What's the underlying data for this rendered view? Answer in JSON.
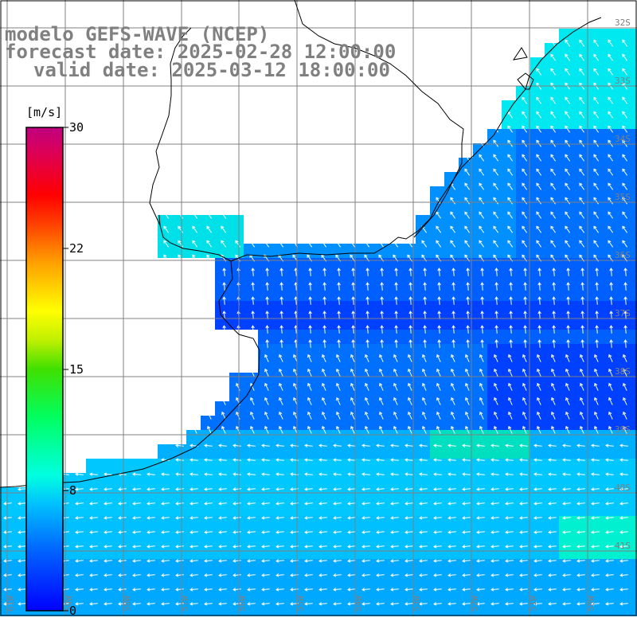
{
  "title": {
    "line1": "modelo GEFS-WAVE (NCEP)",
    "line2": "forecast date: 2025-02-28 12:00:00",
    "line3": "valid date: 2025-03-12 18:00:00"
  },
  "colorbar": {
    "unit": "[m/s]",
    "ticks": [
      "30",
      "22",
      "15",
      "8",
      "0"
    ],
    "min": 0,
    "max": 30,
    "colors": [
      "#0000ff",
      "#0060ff",
      "#00c0ff",
      "#00ffe0",
      "#00ff60",
      "#40e000",
      "#c0f000",
      "#ffff00",
      "#ffa000",
      "#ff4000",
      "#ff0000",
      "#e00050",
      "#c00080"
    ]
  },
  "map": {
    "region": "South-western Atlantic, Rio de la Plata to southern Brazil",
    "lon_labels": [
      "61W",
      "59W",
      "58W",
      "57W",
      "56W",
      "55W",
      "54W",
      "53W",
      "52W",
      "51W",
      "50W"
    ],
    "lat_labels": [
      "32S",
      "33S",
      "34S",
      "35S",
      "36S",
      "37S",
      "38S",
      "39S",
      "40S",
      "41S"
    ],
    "land_color": "#ffffff",
    "coast_color": "#000000",
    "grid_color": "#808080",
    "arrow_color": "#ffffff"
  }
}
